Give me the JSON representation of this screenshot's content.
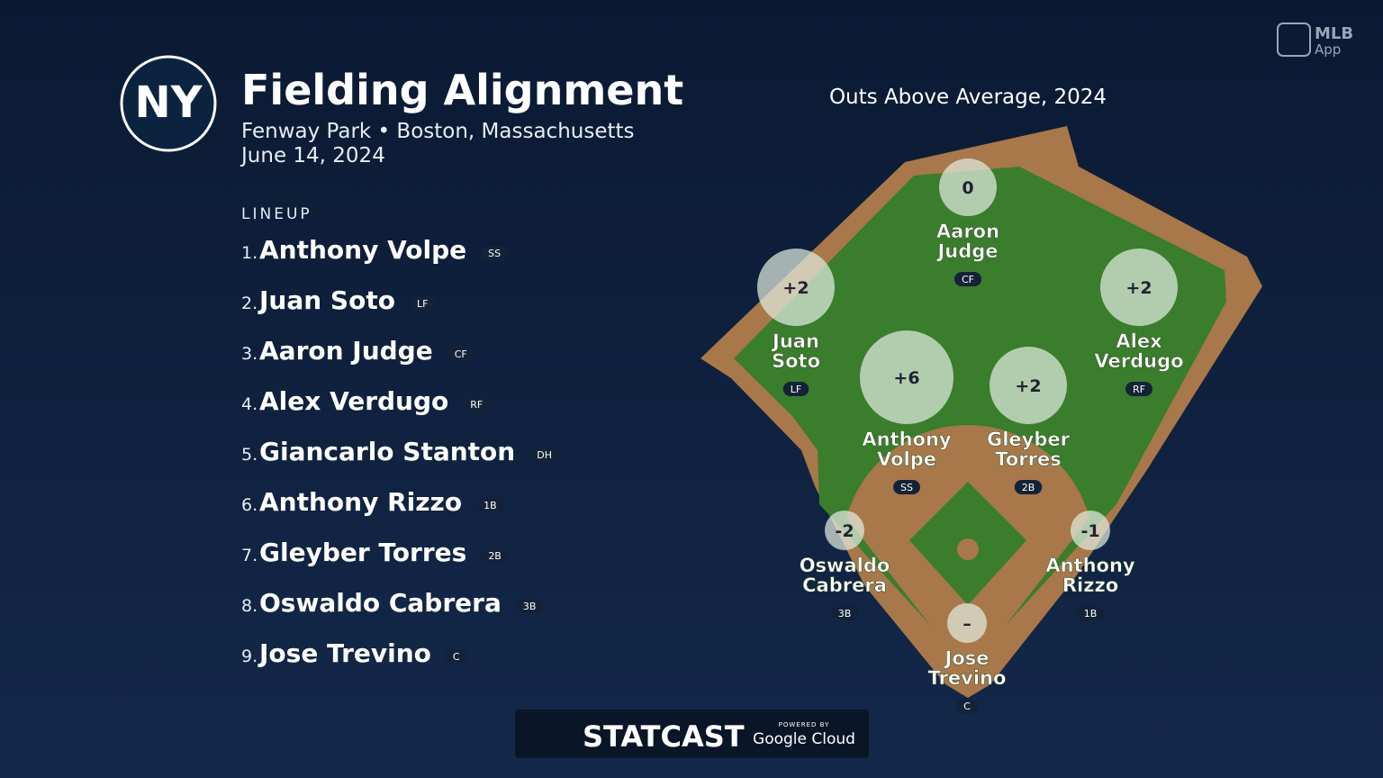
{
  "header": {
    "team_logo": "NY",
    "title": "Fielding Alignment",
    "subtitle": "Fenway Park • Boston, Massachusetts",
    "date": "June 14, 2024"
  },
  "app_badge": {
    "brand": "MLB",
    "product": "App"
  },
  "lineup": {
    "heading": "LINEUP",
    "players": [
      {
        "order": "1.",
        "name": "Anthony Volpe",
        "position": "SS"
      },
      {
        "order": "2.",
        "name": "Juan Soto",
        "position": "LF"
      },
      {
        "order": "3.",
        "name": "Aaron Judge",
        "position": "CF"
      },
      {
        "order": "4.",
        "name": "Alex Verdugo",
        "position": "RF"
      },
      {
        "order": "5.",
        "name": "Giancarlo Stanton",
        "position": "DH"
      },
      {
        "order": "6.",
        "name": "Anthony Rizzo",
        "position": "1B"
      },
      {
        "order": "7.",
        "name": "Gleyber Torres",
        "position": "2B"
      },
      {
        "order": "8.",
        "name": "Oswaldo Cabrera",
        "position": "3B"
      },
      {
        "order": "9.",
        "name": "Jose Trevino",
        "position": "C"
      }
    ]
  },
  "field": {
    "title": "Outs Above Average, 2024",
    "positions": [
      {
        "oaa": "0",
        "name_lines": [
          "Aaron",
          "Judge"
        ],
        "position": "CF"
      },
      {
        "oaa": "+2",
        "name_lines": [
          "Juan",
          "Soto"
        ],
        "position": "LF"
      },
      {
        "oaa": "+2",
        "name_lines": [
          "Alex",
          "Verdugo"
        ],
        "position": "RF"
      },
      {
        "oaa": "+6",
        "name_lines": [
          "Anthony",
          "Volpe"
        ],
        "position": "SS"
      },
      {
        "oaa": "+2",
        "name_lines": [
          "Gleyber",
          "Torres"
        ],
        "position": "2B"
      },
      {
        "oaa": "-2",
        "name_lines": [
          "Oswaldo",
          "Cabrera"
        ],
        "position": "3B"
      },
      {
        "oaa": "-1",
        "name_lines": [
          "Anthony",
          "Rizzo"
        ],
        "position": "1B"
      },
      {
        "oaa": "–",
        "name_lines": [
          "Jose",
          "Trevino"
        ],
        "position": "C"
      }
    ]
  },
  "footer": {
    "brand": "STATCAST",
    "powered_by": "POWERED BY",
    "partner": "Google Cloud"
  }
}
